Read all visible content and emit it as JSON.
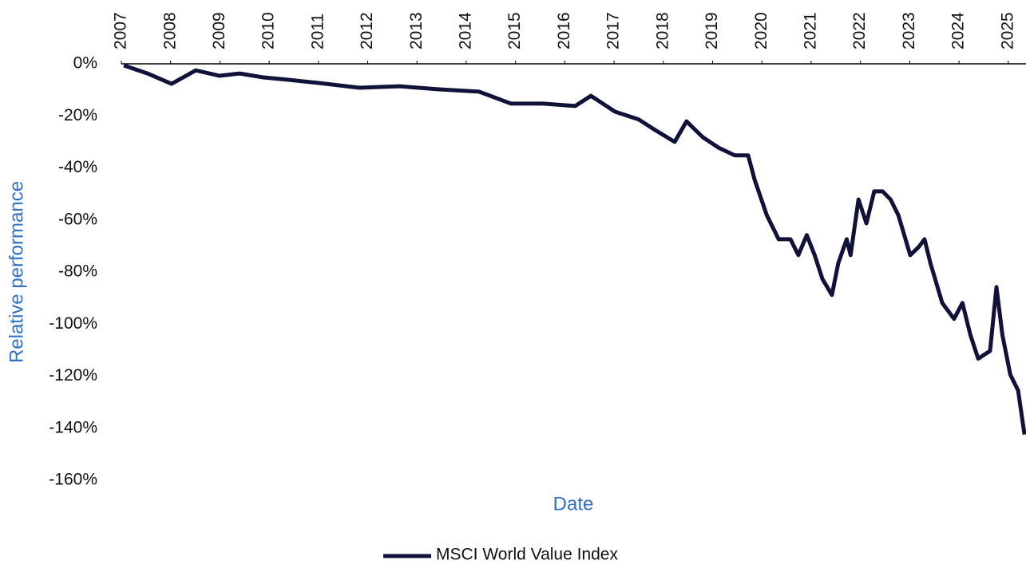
{
  "chart_data": {
    "type": "line",
    "x_label": "Date",
    "y_label": "Relative performance",
    "xlim": [
      2007,
      2025.36
    ],
    "xticks": [
      2007,
      2008,
      2009,
      2010,
      2011,
      2012,
      2013,
      2014,
      2015,
      2016,
      2017,
      2018,
      2019,
      2020,
      2021,
      2022,
      2023,
      2024,
      2025
    ],
    "ylim": [
      -160,
      0
    ],
    "yticks": [
      {
        "value": 0,
        "label": "0%"
      },
      {
        "value": -20,
        "label": "-20%"
      },
      {
        "value": -40,
        "label": "-40%"
      },
      {
        "value": -60,
        "label": "-60%"
      },
      {
        "value": -80,
        "label": "-80%"
      },
      {
        "value": -100,
        "label": "-100%"
      },
      {
        "value": -120,
        "label": "-120%"
      },
      {
        "value": -140,
        "label": "-140%"
      },
      {
        "value": -160,
        "label": "-160%"
      }
    ],
    "grid": false,
    "legend": "bottom",
    "x": [
      2007.05,
      2007.53,
      2008.02,
      2008.51,
      2008.99,
      2009.4,
      2009.88,
      2010.37,
      2011.02,
      2011.83,
      2012.64,
      2013.45,
      2014.26,
      2014.91,
      2015.56,
      2016.21,
      2016.53,
      2017.02,
      2017.5,
      2017.83,
      2018.23,
      2018.47,
      2018.8,
      2019.12,
      2019.45,
      2019.72,
      2019.85,
      2020.1,
      2020.34,
      2020.58,
      2020.74,
      2020.91,
      2021.07,
      2021.23,
      2021.42,
      2021.55,
      2021.72,
      2021.8,
      2021.96,
      2022.12,
      2022.28,
      2022.45,
      2022.61,
      2022.77,
      2023.01,
      2023.18,
      2023.3,
      2023.42,
      2023.66,
      2023.9,
      2024.07,
      2024.23,
      2024.39,
      2024.63,
      2024.76,
      2024.88,
      2025.04,
      2025.2,
      2025.33
    ],
    "series": [
      {
        "name": "MSCI World Value Index",
        "color": "#10123a",
        "values": [
          -0.6,
          -3.7,
          -7.7,
          -2.5,
          -4.6,
          -3.7,
          -5.2,
          -6.1,
          -7.4,
          -9.2,
          -8.6,
          -9.8,
          -10.7,
          -15.3,
          -15.3,
          -16.2,
          -12.3,
          -18.4,
          -21.4,
          -25.4,
          -30.0,
          -22.1,
          -28.2,
          -32.2,
          -35.2,
          -35.2,
          -44.4,
          -58.2,
          -67.4,
          -67.4,
          -73.5,
          -65.8,
          -73.5,
          -82.7,
          -88.8,
          -76.6,
          -67.4,
          -73.5,
          -52.1,
          -61.3,
          -49.0,
          -49.0,
          -52.1,
          -58.2,
          -73.5,
          -70.4,
          -67.4,
          -76.6,
          -91.9,
          -98.0,
          -91.9,
          -104.1,
          -113.3,
          -110.3,
          -85.8,
          -104.1,
          -119.4,
          -125.5,
          -142.4
        ]
      }
    ]
  }
}
